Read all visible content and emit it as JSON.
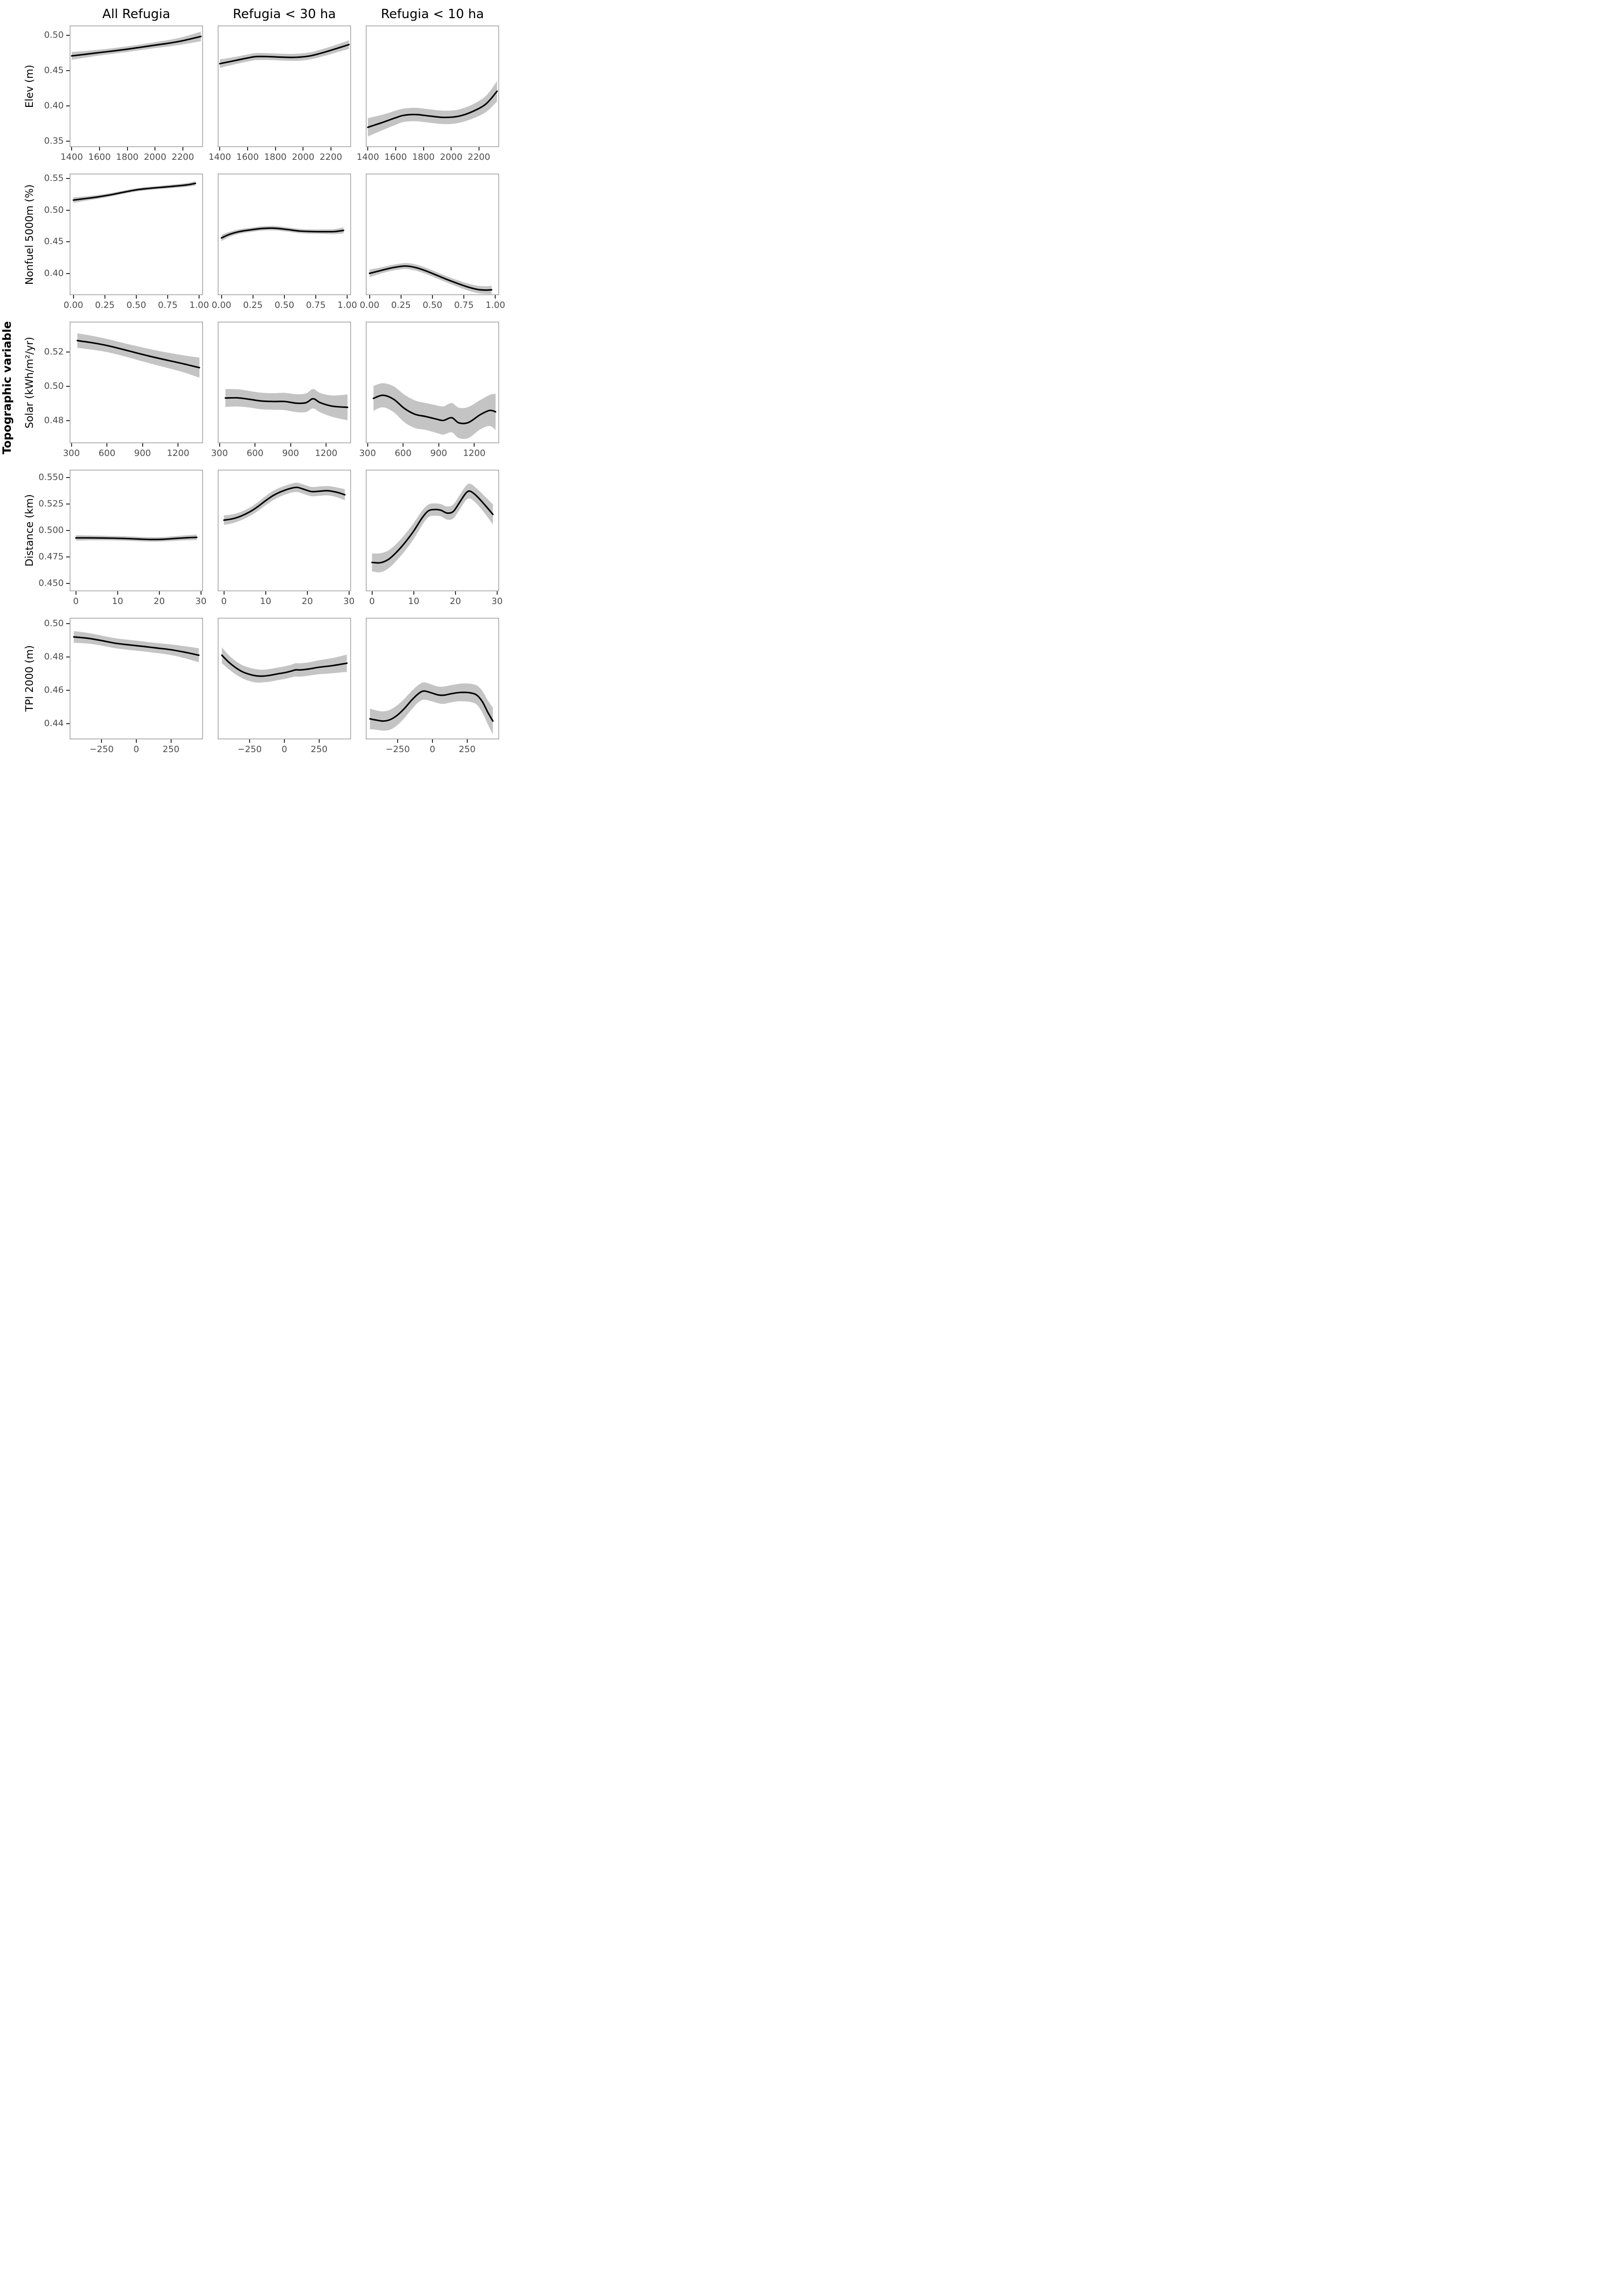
{
  "header": {
    "col_titles": [
      "All Refugia",
      "Refugia < 30 ha",
      "Refugia < 10 ha"
    ]
  },
  "outer_ylabel": "Topographic variable",
  "colors": {
    "line": "#000000",
    "band": "#c4c4c4",
    "panel_border": "#a6a6a6",
    "tick_text": "#4d4d4d",
    "tick_mark": "#333333",
    "background": "#ffffff"
  },
  "chart_data": [
    {
      "type": "line",
      "ylabel": "Elev (m)",
      "xdomain": [
        1385,
        2345
      ],
      "ydomain": [
        0.342,
        0.514
      ],
      "xticks": [
        1400,
        1600,
        1800,
        2000,
        2200
      ],
      "xtick_labels": [
        "1400",
        "1600",
        "1800",
        "2000",
        "2200"
      ],
      "yticks": [
        0.5,
        0.45,
        0.4,
        0.35
      ],
      "ytick_labels": [
        "0.50",
        "0.45",
        "0.40",
        "0.35"
      ],
      "panels": [
        {
          "name": "all_refugia",
          "x": [
            1400,
            1500,
            1600,
            1700,
            1800,
            1900,
            2000,
            2100,
            2200,
            2330
          ],
          "y": [
            0.471,
            0.4733,
            0.4757,
            0.478,
            0.4805,
            0.4833,
            0.4862,
            0.489,
            0.4925,
            0.4985
          ],
          "w": [
            0.0055,
            0.0047,
            0.0042,
            0.004,
            0.004,
            0.004,
            0.0042,
            0.0046,
            0.0052,
            0.0068
          ]
        },
        {
          "name": "lt30ha",
          "x": [
            1400,
            1500,
            1600,
            1660,
            1750,
            1850,
            1950,
            2050,
            2150,
            2250,
            2330
          ],
          "y": [
            0.46,
            0.464,
            0.468,
            0.47,
            0.47,
            0.4692,
            0.469,
            0.471,
            0.476,
            0.482,
            0.487
          ],
          "w": [
            0.006,
            0.0052,
            0.005,
            0.005,
            0.0048,
            0.0048,
            0.005,
            0.005,
            0.0052,
            0.0055,
            0.006
          ]
        },
        {
          "name": "lt10ha",
          "x": [
            1400,
            1500,
            1600,
            1660,
            1750,
            1850,
            1950,
            2050,
            2150,
            2250,
            2330
          ],
          "y": [
            0.37,
            0.3765,
            0.3835,
            0.387,
            0.388,
            0.3858,
            0.384,
            0.3855,
            0.392,
            0.403,
            0.421
          ],
          "w": [
            0.013,
            0.011,
            0.01,
            0.0095,
            0.0095,
            0.0095,
            0.0095,
            0.0095,
            0.01,
            0.0115,
            0.0145
          ]
        }
      ]
    },
    {
      "type": "line",
      "ylabel": "Nonfuel 5000m (%)",
      "xdomain": [
        -0.03,
        1.03
      ],
      "ydomain": [
        0.3655,
        0.558
      ],
      "xticks": [
        0,
        0.25,
        0.5,
        0.75,
        1.0
      ],
      "xtick_labels": [
        "0.00",
        "0.25",
        "0.50",
        "0.75",
        "1.00"
      ],
      "yticks": [
        0.55,
        0.5,
        0.45,
        0.4
      ],
      "ytick_labels": [
        "0.55",
        "0.50",
        "0.45",
        "0.40"
      ],
      "panels": [
        {
          "name": "all_refugia",
          "x": [
            0,
            0.1,
            0.2,
            0.3,
            0.4,
            0.5,
            0.6,
            0.7,
            0.8,
            0.9,
            0.97
          ],
          "y": [
            0.516,
            0.5185,
            0.5212,
            0.5245,
            0.5285,
            0.5322,
            0.5345,
            0.5362,
            0.538,
            0.54,
            0.5425
          ],
          "w": [
            0.0045,
            0.0035,
            0.003,
            0.0028,
            0.0026,
            0.0026,
            0.0026,
            0.0026,
            0.0028,
            0.003,
            0.0035
          ]
        },
        {
          "name": "lt30ha",
          "x": [
            0,
            0.06,
            0.14,
            0.22,
            0.32,
            0.42,
            0.52,
            0.62,
            0.72,
            0.82,
            0.9,
            0.97
          ],
          "y": [
            0.456,
            0.4615,
            0.466,
            0.4685,
            0.471,
            0.4715,
            0.4695,
            0.467,
            0.4662,
            0.466,
            0.4662,
            0.468
          ],
          "w": [
            0.005,
            0.004,
            0.0036,
            0.0034,
            0.0034,
            0.0034,
            0.0034,
            0.0034,
            0.0034,
            0.0036,
            0.004,
            0.0048
          ]
        },
        {
          "name": "lt10ha",
          "x": [
            0,
            0.08,
            0.16,
            0.24,
            0.3,
            0.38,
            0.46,
            0.54,
            0.62,
            0.7,
            0.78,
            0.86,
            0.93,
            0.97
          ],
          "y": [
            0.4,
            0.404,
            0.408,
            0.4108,
            0.4115,
            0.4085,
            0.403,
            0.3965,
            0.39,
            0.384,
            0.3785,
            0.3745,
            0.3735,
            0.374
          ],
          "w": [
            0.006,
            0.005,
            0.0046,
            0.0046,
            0.0048,
            0.005,
            0.005,
            0.005,
            0.005,
            0.0052,
            0.0055,
            0.0058,
            0.006,
            0.0065
          ]
        }
      ]
    },
    {
      "type": "line",
      "ylabel": "Solar (kWh/m²/yr)",
      "xdomain": [
        285,
        1410
      ],
      "ydomain": [
        0.467,
        0.5375
      ],
      "xticks": [
        300,
        600,
        900,
        1200
      ],
      "xtick_labels": [
        "300",
        "600",
        "900",
        "1200"
      ],
      "yticks": [
        0.52,
        0.5,
        0.48
      ],
      "ytick_labels": [
        "0.52",
        "0.50",
        "0.48"
      ],
      "panels": [
        {
          "name": "all_refugia",
          "x": [
            350,
            480,
            610,
            740,
            870,
            1000,
            1130,
            1260,
            1380
          ],
          "y": [
            0.5265,
            0.5252,
            0.5235,
            0.5213,
            0.519,
            0.5168,
            0.5148,
            0.5128,
            0.5108
          ],
          "w": [
            0.0042,
            0.004,
            0.0038,
            0.0038,
            0.004,
            0.0042,
            0.0045,
            0.005,
            0.0058
          ]
        },
        {
          "name": "lt30ha",
          "x": [
            350,
            450,
            550,
            650,
            750,
            850,
            950,
            1030,
            1090,
            1150,
            1250,
            1380
          ],
          "y": [
            0.4932,
            0.4933,
            0.4925,
            0.4915,
            0.4912,
            0.4912,
            0.4902,
            0.4905,
            0.4928,
            0.4905,
            0.4885,
            0.4878
          ],
          "w": [
            0.0052,
            0.005,
            0.0048,
            0.0048,
            0.0048,
            0.005,
            0.0052,
            0.0054,
            0.0056,
            0.0056,
            0.0062,
            0.0075
          ]
        },
        {
          "name": "lt10ha",
          "x": [
            350,
            430,
            520,
            610,
            700,
            790,
            880,
            940,
            1010,
            1070,
            1150,
            1250,
            1330,
            1380
          ],
          "y": [
            0.493,
            0.4948,
            0.4925,
            0.4872,
            0.4838,
            0.4825,
            0.481,
            0.4802,
            0.4818,
            0.4788,
            0.479,
            0.4835,
            0.486,
            0.4852
          ],
          "w": [
            0.0072,
            0.007,
            0.0075,
            0.008,
            0.008,
            0.0078,
            0.008,
            0.0082,
            0.0085,
            0.0088,
            0.009,
            0.0085,
            0.009,
            0.0105
          ]
        }
      ]
    },
    {
      "type": "line",
      "ylabel": "Distance (km)",
      "xdomain": [
        -1.5,
        30.5
      ],
      "ydomain": [
        0.4425,
        0.5575
      ],
      "xticks": [
        0,
        10,
        20,
        30
      ],
      "xtick_labels": [
        "0",
        "10",
        "20",
        "30"
      ],
      "yticks": [
        0.55,
        0.525,
        0.5,
        0.475,
        0.45
      ],
      "ytick_labels": [
        "0.550",
        "0.525",
        "0.500",
        "0.475",
        "0.450"
      ],
      "panels": [
        {
          "name": "all_refugia",
          "x": [
            0,
            3,
            6,
            9,
            12,
            15,
            18,
            21,
            24,
            27,
            29
          ],
          "y": [
            0.493,
            0.493,
            0.4929,
            0.4927,
            0.4924,
            0.4919,
            0.4915,
            0.4917,
            0.4925,
            0.4932,
            0.4935
          ],
          "w": [
            0.0026,
            0.0023,
            0.0022,
            0.0021,
            0.0021,
            0.0021,
            0.0021,
            0.0021,
            0.0022,
            0.0024,
            0.0026
          ]
        },
        {
          "name": "lt30ha",
          "x": [
            0,
            2,
            4,
            6,
            8,
            10,
            12,
            14,
            16,
            17.5,
            19,
            21,
            23,
            25,
            27,
            29
          ],
          "y": [
            0.5098,
            0.511,
            0.5135,
            0.5172,
            0.5222,
            0.5282,
            0.5335,
            0.5372,
            0.5398,
            0.5408,
            0.5392,
            0.5368,
            0.5372,
            0.5376,
            0.5362,
            0.5338
          ],
          "w": [
            0.0045,
            0.0042,
            0.004,
            0.004,
            0.0042,
            0.0044,
            0.0044,
            0.0042,
            0.0042,
            0.0044,
            0.0044,
            0.0044,
            0.0044,
            0.0044,
            0.0046,
            0.0052
          ]
        },
        {
          "name": "lt10ha",
          "x": [
            0,
            2,
            4,
            6,
            8,
            10,
            12,
            13.5,
            15,
            16.5,
            18,
            19.5,
            21,
            22.5,
            23.5,
            25,
            27,
            29
          ],
          "y": [
            0.4698,
            0.4695,
            0.4728,
            0.48,
            0.489,
            0.4995,
            0.5118,
            0.5185,
            0.5198,
            0.5192,
            0.5165,
            0.518,
            0.5265,
            0.5352,
            0.5372,
            0.533,
            0.5245,
            0.5152
          ],
          "w": [
            0.0085,
            0.009,
            0.0085,
            0.008,
            0.0078,
            0.0075,
            0.0068,
            0.006,
            0.0058,
            0.0058,
            0.0062,
            0.0066,
            0.0068,
            0.0068,
            0.007,
            0.0072,
            0.008,
            0.0095
          ]
        }
      ]
    },
    {
      "type": "line",
      "ylabel": "TPI 2000 (m)",
      "xdomain": [
        -480,
        480
      ],
      "ydomain": [
        0.4305,
        0.5035
      ],
      "xticks": [
        -250,
        0,
        250
      ],
      "xtick_labels": [
        "−250",
        "0",
        "250"
      ],
      "yticks": [
        0.5,
        0.48,
        0.46,
        0.44
      ],
      "ytick_labels": [
        "0.50",
        "0.48",
        "0.46",
        "0.44"
      ],
      "panels": [
        {
          "name": "all_refugia",
          "x": [
            -450,
            -350,
            -250,
            -150,
            -50,
            50,
            150,
            250,
            350,
            450
          ],
          "y": [
            0.492,
            0.4912,
            0.4898,
            0.4882,
            0.4872,
            0.4863,
            0.4853,
            0.4843,
            0.4828,
            0.481
          ],
          "w": [
            0.0035,
            0.0032,
            0.003,
            0.003,
            0.003,
            0.003,
            0.003,
            0.0032,
            0.0036,
            0.0042
          ]
        },
        {
          "name": "lt30ha",
          "x": [
            -450,
            -400,
            -350,
            -300,
            -250,
            -200,
            -150,
            -100,
            -50,
            0,
            50,
            80,
            120,
            180,
            250,
            350,
            450
          ],
          "y": [
            0.481,
            0.4768,
            0.4735,
            0.471,
            0.4695,
            0.4686,
            0.4685,
            0.469,
            0.4698,
            0.4705,
            0.4715,
            0.4722,
            0.4722,
            0.4728,
            0.4738,
            0.4748,
            0.4762
          ],
          "w": [
            0.0048,
            0.0042,
            0.004,
            0.004,
            0.004,
            0.004,
            0.0038,
            0.0038,
            0.0038,
            0.0038,
            0.0038,
            0.004,
            0.004,
            0.004,
            0.0042,
            0.0046,
            0.0052
          ]
        },
        {
          "name": "lt10ha",
          "x": [
            -450,
            -400,
            -350,
            -300,
            -250,
            -200,
            -150,
            -100,
            -60,
            0,
            40,
            80,
            130,
            180,
            230,
            280,
            320,
            360,
            400,
            435
          ],
          "y": [
            0.4428,
            0.442,
            0.4415,
            0.4425,
            0.4452,
            0.4492,
            0.454,
            0.458,
            0.4595,
            0.4582,
            0.4572,
            0.457,
            0.4578,
            0.4585,
            0.4587,
            0.4583,
            0.457,
            0.453,
            0.4465,
            0.4415
          ],
          "w": [
            0.0062,
            0.0058,
            0.0058,
            0.006,
            0.006,
            0.0058,
            0.0055,
            0.0052,
            0.0052,
            0.005,
            0.005,
            0.0052,
            0.0052,
            0.0052,
            0.0054,
            0.0055,
            0.0058,
            0.0065,
            0.0072,
            0.008
          ]
        }
      ]
    }
  ]
}
